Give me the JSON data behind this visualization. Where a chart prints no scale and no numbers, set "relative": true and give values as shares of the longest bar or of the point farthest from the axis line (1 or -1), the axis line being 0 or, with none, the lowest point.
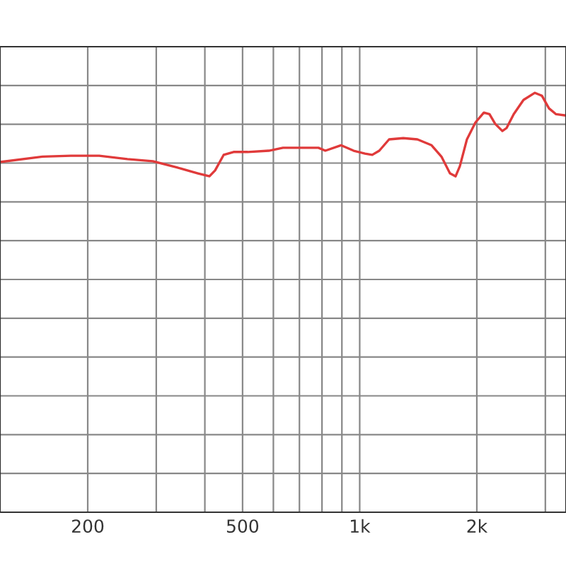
{
  "chart_data": {
    "type": "line",
    "relative": true,
    "log": "x",
    "grid": true,
    "tick_labels": "x",
    "marker": "none",
    "line_style": "solid",
    "xlim": [
      119,
      3390
    ],
    "xticks": [
      200,
      {
        "value": 300,
        "label": null
      },
      {
        "value": 400,
        "label": null
      },
      500,
      {
        "value": 600,
        "label": null
      },
      {
        "value": 700,
        "label": null
      },
      {
        "value": 800,
        "label": null
      },
      {
        "value": 900,
        "label": null
      },
      {
        "value": 1000,
        "label": "1k"
      },
      {
        "value": 2000,
        "label": "2k"
      },
      {
        "value": 3000,
        "label": null
      }
    ],
    "x": [
      119,
      153,
      181,
      214,
      253,
      294,
      339,
      384,
      411,
      425,
      447,
      474,
      515,
      584,
      635,
      720,
      783,
      816,
      895,
      965,
      1032,
      1077,
      1123,
      1190,
      1294,
      1407,
      1530,
      1622,
      1706,
      1764,
      1809,
      1886,
      1983,
      2085,
      2156,
      2230,
      2326,
      2385,
      2487,
      2636,
      2820,
      2940,
      3065,
      3197,
      3390
    ],
    "series": [
      {
        "color": "#e03a3a",
        "values": [
          0.835,
          0.848,
          0.85,
          0.85,
          0.842,
          0.837,
          0.822,
          0.808,
          0.801,
          0.815,
          0.852,
          0.859,
          0.859,
          0.862,
          0.869,
          0.869,
          0.869,
          0.862,
          0.875,
          0.862,
          0.855,
          0.852,
          0.862,
          0.889,
          0.892,
          0.889,
          0.875,
          0.848,
          0.808,
          0.801,
          0.825,
          0.889,
          0.929,
          0.953,
          0.949,
          0.926,
          0.909,
          0.916,
          0.949,
          0.983,
          1,
          0.993,
          0.963,
          0.949,
          0.946
        ]
      }
    ]
  }
}
